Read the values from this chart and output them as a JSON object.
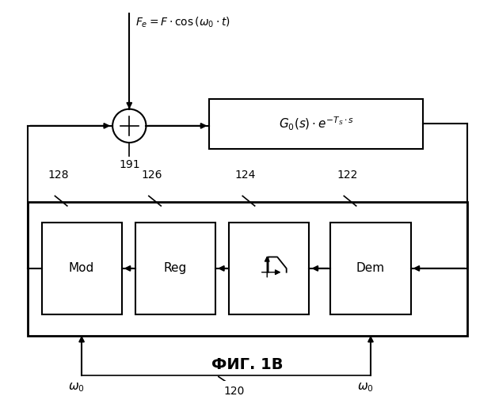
{
  "title": "ФИГ. 1В",
  "background_color": "#ffffff",
  "g0_label": "$G_0(s) \\cdot e^{-T_S \\cdot s}$",
  "fe_label": "$F_e = F \\cdot \\cos\\left(\\omega_0 \\cdot t\\right)$",
  "mod_label": "Mod",
  "reg_label": "Reg",
  "dem_label": "Dem",
  "label_128": "128",
  "label_126": "126",
  "label_124": "124",
  "label_122": "122",
  "label_191": "191",
  "label_120": "120",
  "omega_label": "$\\omega_0$"
}
